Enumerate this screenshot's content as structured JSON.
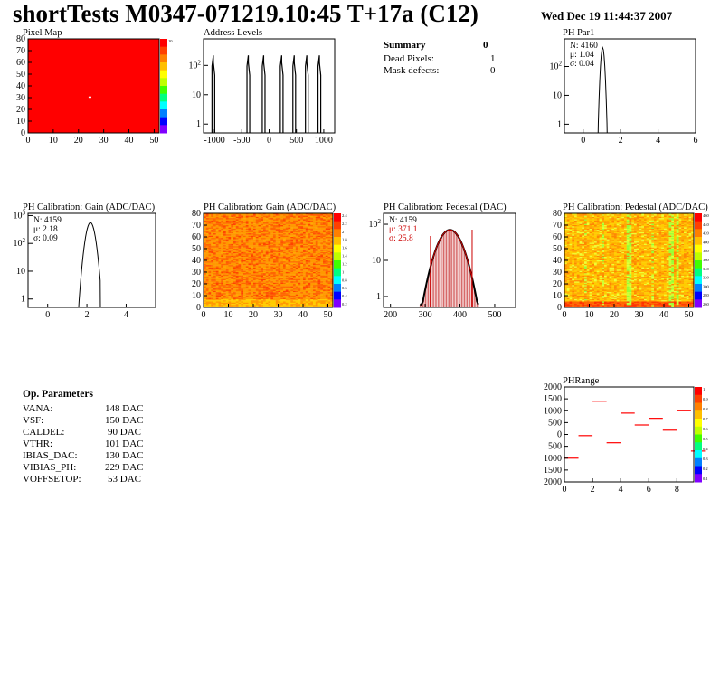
{
  "header": {
    "title": "shortTests M0347-071219.10:45 T+17a (C12)",
    "date": "Wed Dec 19 11:44:37 2007"
  },
  "summary": {
    "title": "Summary",
    "count": "0",
    "rows": [
      {
        "label": "Dead Pixels:",
        "value": "1"
      },
      {
        "label": "Mask defects:",
        "value": "0"
      }
    ]
  },
  "op_params": {
    "title": "Op. Parameters",
    "rows": [
      {
        "label": "VANA:",
        "value": "148 DAC"
      },
      {
        "label": "VSF:",
        "value": "150 DAC"
      },
      {
        "label": "CALDEL:",
        "value": "90 DAC"
      },
      {
        "label": "VTHR:",
        "value": "101 DAC"
      },
      {
        "label": "IBIAS_DAC:",
        "value": "130 DAC"
      },
      {
        "label": "VIBIAS_PH:",
        "value": "229 DAC"
      },
      {
        "label": "VOFFSETOP:",
        "value": "53 DAC"
      }
    ]
  },
  "colors": {
    "red": "#ff0000",
    "black": "#000000",
    "fit": "#cc0000"
  },
  "chart_data": [
    {
      "id": "pixel-map",
      "type": "heatmap",
      "title": "Pixel Map",
      "xlim": [
        0,
        52
      ],
      "ylim": [
        0,
        80
      ],
      "xticks": [
        "0",
        "10",
        "20",
        "30",
        "40",
        "50"
      ],
      "yticks": [
        "0",
        "10",
        "20",
        "30",
        "40",
        "50",
        "60",
        "70",
        "80"
      ],
      "palette_max": "10",
      "uniform_value": 10,
      "dead_pixel": [
        24,
        31
      ]
    },
    {
      "id": "address-levels",
      "type": "line",
      "title": "Address Levels",
      "log_y": true,
      "xlim": [
        -1200,
        1200
      ],
      "xticks": [
        "-1000",
        "-500",
        "0",
        "500",
        "1000"
      ],
      "yticks": [
        "1",
        "10",
        "10^2"
      ],
      "peaks_x": [
        -1020,
        -380,
        -100,
        230,
        460,
        690,
        920
      ],
      "peak_height": 220
    },
    {
      "id": "ph-par1",
      "type": "line",
      "title": "PH Par1",
      "log_y": true,
      "xlim": [
        -1,
        6
      ],
      "xticks": [
        "0",
        "2",
        "4",
        "6"
      ],
      "yticks": [
        "1",
        "10",
        "10^2"
      ],
      "stats": [
        {
          "k": "N:",
          "v": "4160"
        },
        {
          "k": "μ:",
          "v": "1.04"
        },
        {
          "k": "σ:",
          "v": "0.04"
        }
      ],
      "peak_x": 1.04,
      "peak_height": 450
    },
    {
      "id": "gain-hist",
      "type": "line",
      "title": "PH Calibration: Gain (ADC/DAC)",
      "log_y": true,
      "xlim": [
        -1,
        5.5
      ],
      "xticks": [
        "0",
        "2",
        "4"
      ],
      "yticks": [
        "1",
        "10",
        "10^2",
        "10^3"
      ],
      "stats": [
        {
          "k": "N:",
          "v": "4159"
        },
        {
          "k": "μ:",
          "v": "2.18"
        },
        {
          "k": "σ:",
          "v": "0.09"
        }
      ],
      "peak_x": 2.18,
      "peak_height": 560
    },
    {
      "id": "gain-map",
      "type": "heatmap",
      "title": "PH Calibration: Gain (ADC/DAC)",
      "xlim": [
        0,
        52
      ],
      "ylim": [
        0,
        80
      ],
      "xticks": [
        "0",
        "10",
        "20",
        "30",
        "40",
        "50"
      ],
      "yticks": [
        "0",
        "10",
        "20",
        "30",
        "40",
        "50",
        "60",
        "70",
        "80"
      ],
      "palette_labels": [
        "2.4",
        "2.2",
        "2",
        "1.8",
        "1.6",
        "1.4",
        "1.2",
        "1",
        "0.8",
        "0.6",
        "0.4",
        "0.2"
      ]
    },
    {
      "id": "pedestal-hist",
      "type": "bar",
      "title": "PH Calibration: Pedestal (DAC)",
      "log_y": true,
      "xlim": [
        180,
        560
      ],
      "xticks": [
        "200",
        "300",
        "400",
        "500"
      ],
      "yticks": [
        "1",
        "10",
        "10^2"
      ],
      "stats": [
        {
          "k": "N:",
          "v": "4159"
        },
        {
          "k": "μ:",
          "v": "371.1"
        },
        {
          "k": "σ:",
          "v": "25.8"
        }
      ],
      "mean": 371.1,
      "sigma": 25.8,
      "peak_height": 70,
      "fit_range": [
        315,
        435
      ]
    },
    {
      "id": "pedestal-map",
      "type": "heatmap",
      "title": "PH Calibration: Pedestal (ADC/DAC)",
      "xlim": [
        0,
        52
      ],
      "ylim": [
        0,
        80
      ],
      "xticks": [
        "0",
        "10",
        "20",
        "30",
        "40",
        "50"
      ],
      "yticks": [
        "0",
        "10",
        "20",
        "30",
        "40",
        "50",
        "60",
        "70",
        "80"
      ],
      "palette_labels": [
        "460",
        "440",
        "420",
        "400",
        "380",
        "360",
        "340",
        "320",
        "300",
        "280",
        "260"
      ]
    },
    {
      "id": "ph-range",
      "type": "scatter",
      "title": "PHRange",
      "xlim": [
        0,
        9.2
      ],
      "ylim": [
        -2000,
        2000
      ],
      "xticks": [
        "0",
        "2",
        "4",
        "6",
        "8"
      ],
      "yticks": [
        "2000",
        "1500",
        "1000",
        "500",
        "0",
        "500",
        "1000",
        "1500",
        "2000"
      ],
      "palette_labels": [
        "1",
        "0.9",
        "0.8",
        "0.7",
        "0.6",
        "0.5",
        "0.4",
        "0.3",
        "0.2",
        "0.1"
      ],
      "segments": [
        {
          "x": 0,
          "y": -1000
        },
        {
          "x": 1,
          "y": -50
        },
        {
          "x": 2,
          "y": 1400
        },
        {
          "x": 3,
          "y": -350
        },
        {
          "x": 4,
          "y": 900
        },
        {
          "x": 5,
          "y": 400
        },
        {
          "x": 6,
          "y": 680
        },
        {
          "x": 7,
          "y": 180
        },
        {
          "x": 8,
          "y": 1000
        },
        {
          "x": 9,
          "y": -700
        }
      ]
    }
  ]
}
